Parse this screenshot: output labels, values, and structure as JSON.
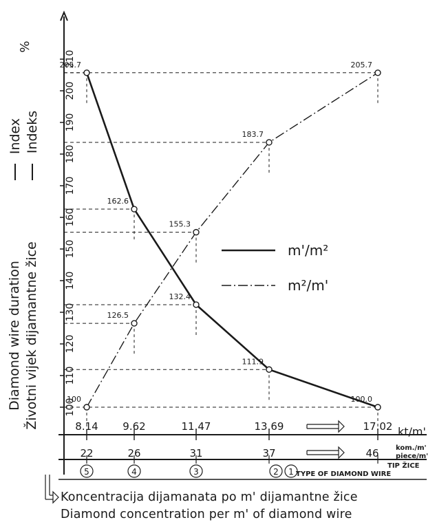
{
  "chart_data": {
    "type": "line",
    "title": "",
    "yunit": "%",
    "ylabel_en": "Diamond wire duration",
    "ylabel_hr": "Životni vijek dijamantne žice",
    "index_label_en": "Index",
    "index_label_hr": "Indeks",
    "ylim": [
      95,
      220
    ],
    "yticks": [
      100,
      110,
      120,
      130,
      140,
      150,
      160,
      170,
      180,
      190,
      200,
      210
    ],
    "x": [
      8.14,
      9.62,
      11.47,
      13.69,
      17.02
    ],
    "xtick_labels": [
      "8.14",
      "9.62",
      "11.47",
      "13.69",
      "17.02"
    ],
    "x_unit": "kt/m'",
    "pieces": [
      "22",
      "26",
      "31",
      "37",
      "46"
    ],
    "pieces_unit_hr": "kom./m'",
    "pieces_unit_en": "piece/m'",
    "types": [
      "5",
      "4",
      "3",
      "2",
      "1"
    ],
    "type_label_hr": "TIP ŽICE",
    "type_label_en": "TYPE OF DIAMOND WIRE",
    "series": [
      {
        "name": "m'/m²",
        "style": "solid",
        "values": [
          205.7,
          162.6,
          132.4,
          111.9,
          100.0
        ],
        "labels": [
          "205.7",
          "162.6",
          "132.4",
          "111.9",
          "100.0"
        ]
      },
      {
        "name": "m²/m'",
        "style": "dash-dot",
        "values": [
          100,
          126.5,
          155.3,
          183.7,
          205.7
        ],
        "labels": [
          "100",
          "126.5",
          "155.3",
          "183.7",
          "205.7"
        ]
      }
    ],
    "bottom_label_hr": "Koncentracija dijamanata po m' dijamantne žice",
    "bottom_label_en": "Diamond concentration per m' of diamond wire"
  }
}
